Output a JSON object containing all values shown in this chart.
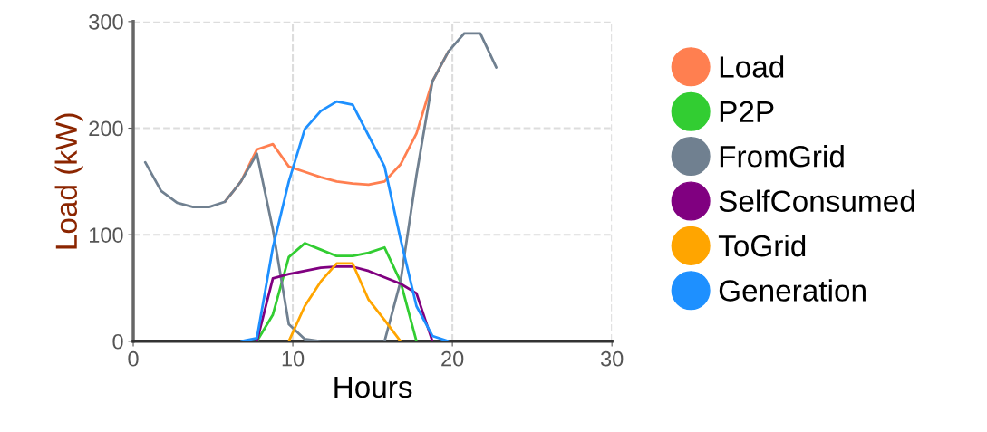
{
  "chart_data": {
    "type": "line",
    "xlabel": "Hours",
    "ylabel": "Load (kW)",
    "x": [
      0.75,
      1.75,
      2.75,
      3.75,
      4.75,
      5.75,
      6.75,
      7.75,
      8.75,
      9.75,
      10.75,
      11.75,
      12.75,
      13.75,
      14.75,
      15.75,
      16.75,
      17.75,
      18.75,
      19.75,
      20.75,
      21.75,
      22.75
    ],
    "xlim": [
      0,
      30
    ],
    "xticks": [
      0,
      10,
      20,
      30
    ],
    "ylim": [
      0,
      300
    ],
    "yticks": [
      0,
      100,
      200,
      300
    ],
    "grid": true,
    "legend": "right",
    "marker": "none",
    "line_style": "solid",
    "series": [
      {
        "name": "Load",
        "color": "#ff7f50",
        "values": [
          null,
          null,
          null,
          null,
          null,
          131,
          150,
          180,
          185,
          164,
          159,
          154,
          150,
          148,
          147,
          150,
          166,
          195,
          244,
          272,
          null,
          null,
          null
        ]
      },
      {
        "name": "P2P",
        "color": "#32cd32",
        "values": [
          null,
          null,
          null,
          null,
          null,
          null,
          null,
          0,
          25,
          79,
          92,
          86,
          80,
          80,
          83,
          88,
          56,
          0,
          null,
          null,
          null,
          null,
          null
        ]
      },
      {
        "name": "FromGrid",
        "color": "#708090",
        "values": [
          168,
          141,
          130,
          126,
          126,
          131,
          150,
          176,
          105,
          16,
          2,
          0,
          0,
          0,
          0,
          0,
          56,
          156,
          244,
          272,
          289,
          289,
          257
        ]
      },
      {
        "name": "SelfConsumed",
        "color": "#800080",
        "values": [
          null,
          null,
          null,
          null,
          null,
          null,
          null,
          0,
          59,
          63,
          66,
          69,
          70,
          70,
          66,
          60,
          54,
          45,
          0,
          null,
          null,
          null,
          null
        ]
      },
      {
        "name": "ToGrid",
        "color": "#ffa500",
        "values": [
          null,
          null,
          null,
          null,
          null,
          null,
          null,
          null,
          null,
          0,
          33,
          56,
          73,
          73,
          39,
          20,
          0,
          null,
          null,
          null,
          null,
          null,
          null
        ]
      },
      {
        "name": "Generation",
        "color": "#1e90ff",
        "values": [
          null,
          null,
          null,
          null,
          null,
          null,
          0,
          3,
          88,
          150,
          199,
          216,
          225,
          222,
          193,
          164,
          96,
          33,
          5,
          0,
          null,
          null,
          null
        ]
      }
    ]
  }
}
